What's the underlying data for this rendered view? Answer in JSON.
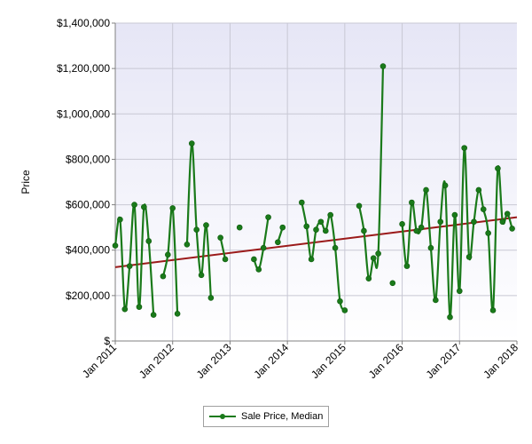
{
  "chart_data": {
    "type": "line",
    "title": "",
    "xlabel": "",
    "ylabel": "Price",
    "ylim": [
      0,
      1400000
    ],
    "xlim": [
      "2011-01",
      "2018-01"
    ],
    "y_ticks": [
      "$",
      "$200,000",
      "$400,000",
      "$600,000",
      "$800,000",
      "$1,000,000",
      "$1,200,000",
      "$1,400,000"
    ],
    "x_ticks": [
      "Jan 2011",
      "Jan 2012",
      "Jan 2013",
      "Jan 2014",
      "Jan 2015",
      "Jan 2016",
      "Jan 2017",
      "Jan 2018"
    ],
    "grid": true,
    "legend_position": "bottom-center",
    "series": [
      {
        "name": "Sale Price, Median",
        "color": "#1a7a1a",
        "segments": [
          [
            [
              "2011-01",
              420000
            ],
            [
              "2011-02",
              535000
            ],
            [
              "2011-03",
              140000
            ],
            [
              "2011-04",
              330000
            ],
            [
              "2011-05",
              600000
            ],
            [
              "2011-06",
              150000
            ],
            [
              "2011-07",
              590000
            ],
            [
              "2011-08",
              440000
            ],
            [
              "2011-09",
              115000
            ]
          ],
          [
            [
              "2011-11",
              285000
            ],
            [
              "2011-12",
              380000
            ],
            [
              "2012-01",
              585000
            ],
            [
              "2012-02",
              120000
            ]
          ],
          [
            [
              "2012-04",
              425000
            ],
            [
              "2012-05",
              870000
            ],
            [
              "2012-06",
              490000
            ],
            [
              "2012-07",
              290000
            ],
            [
              "2012-08",
              510000
            ],
            [
              "2012-09",
              190000
            ]
          ],
          [
            [
              "2012-11",
              455000
            ],
            [
              "2012-12",
              360000
            ]
          ],
          [
            [
              "2013-03",
              500000
            ]
          ],
          [
            [
              "2013-06",
              360000
            ],
            [
              "2013-07",
              315000
            ],
            [
              "2013-08",
              410000
            ],
            [
              "2013-09",
              545000
            ]
          ],
          [
            [
              "2013-11",
              435000
            ],
            [
              "2013-12",
              500000
            ]
          ],
          [
            [
              "2014-04",
              610000
            ],
            [
              "2014-05",
              505000
            ],
            [
              "2014-06",
              360000
            ],
            [
              "2014-07",
              490000
            ],
            [
              "2014-08",
              525000
            ],
            [
              "2014-09",
              485000
            ],
            [
              "2014-10",
              555000
            ],
            [
              "2014-11",
              410000
            ],
            [
              "2014-12",
              175000
            ],
            [
              "2015-01",
              135000
            ]
          ],
          [
            [
              "2015-04",
              595000
            ],
            [
              "2015-05",
              485000
            ],
            [
              "2015-06",
              275000
            ],
            [
              "2015-07",
              365000
            ],
            [
              "2015-08",
              385000
            ],
            [
              "2015-09",
              1210000
            ]
          ],
          [
            [
              "2015-11",
              255000
            ]
          ],
          [
            [
              "2016-01",
              515000
            ],
            [
              "2016-02",
              330000
            ],
            [
              "2016-03",
              610000
            ],
            [
              "2016-04",
              485000
            ],
            [
              "2016-05",
              500000
            ],
            [
              "2016-06",
              665000
            ],
            [
              "2016-07",
              410000
            ],
            [
              "2016-08",
              180000
            ],
            [
              "2016-09",
              525000
            ],
            [
              "2016-10",
              685000
            ],
            [
              "2016-11",
              105000
            ],
            [
              "2016-12",
              555000
            ],
            [
              "2017-01",
              220000
            ],
            [
              "2017-02",
              850000
            ],
            [
              "2017-03",
              370000
            ],
            [
              "2017-04",
              525000
            ],
            [
              "2017-05",
              665000
            ],
            [
              "2017-06",
              580000
            ],
            [
              "2017-07",
              475000
            ],
            [
              "2017-08",
              135000
            ],
            [
              "2017-09",
              760000
            ],
            [
              "2017-10",
              525000
            ],
            [
              "2017-11",
              560000
            ],
            [
              "2017-12",
              495000
            ]
          ]
        ]
      }
    ],
    "trendline": {
      "color": "#9b1a1a",
      "points": [
        [
          "2011-01",
          325000
        ],
        [
          "2018-01",
          545000
        ]
      ]
    }
  },
  "legend": {
    "label": "Sale Price, Median"
  }
}
